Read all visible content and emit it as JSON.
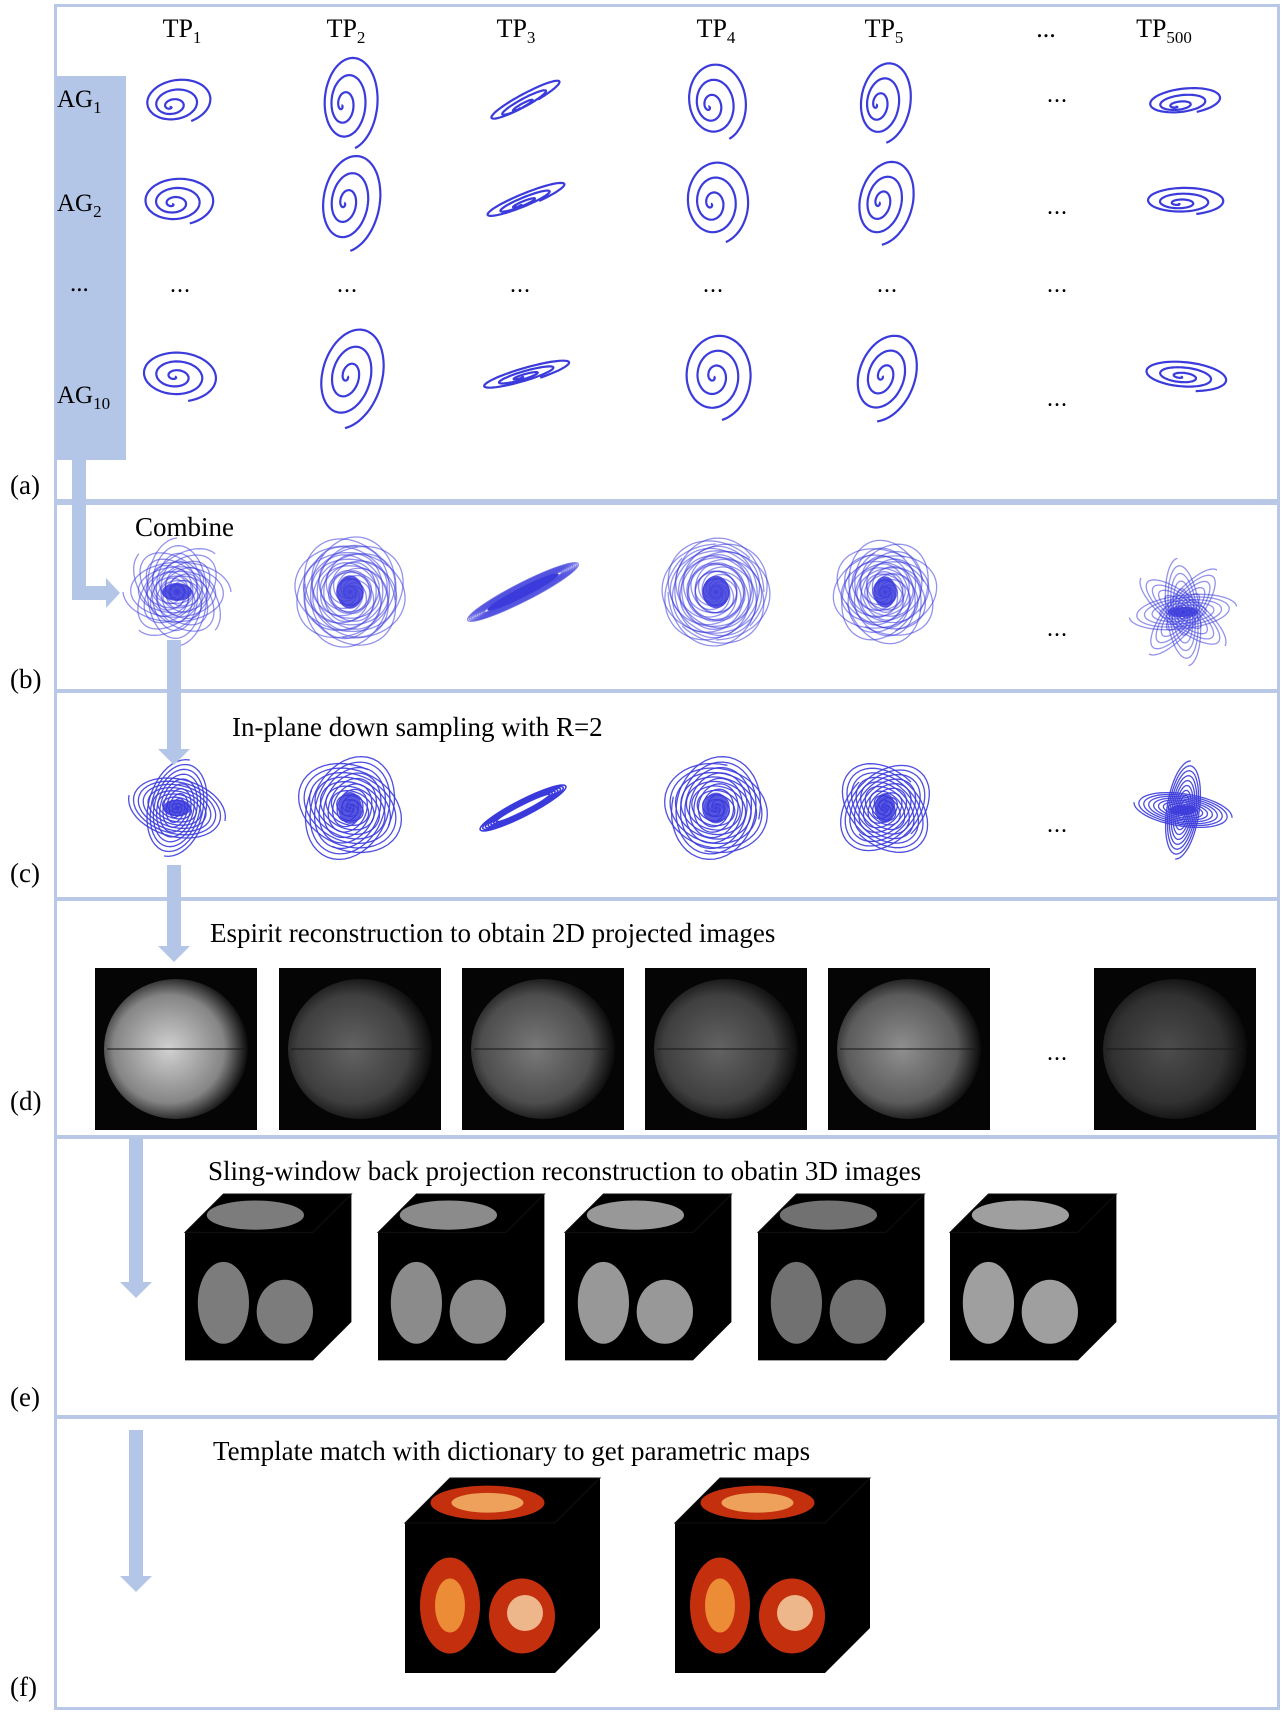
{
  "panel_labels": [
    "(a)",
    "(b)",
    "(c)",
    "(d)",
    "(e)",
    "(f)"
  ],
  "tp_headers": [
    {
      "base": "TP",
      "sub": "1"
    },
    {
      "base": "TP",
      "sub": "2"
    },
    {
      "base": "TP",
      "sub": "3"
    },
    {
      "base": "TP",
      "sub": "4"
    },
    {
      "base": "TP",
      "sub": "5"
    },
    {
      "base": "...",
      "sub": ""
    },
    {
      "base": "TP",
      "sub": "500"
    }
  ],
  "ag_headers": [
    {
      "base": "AG",
      "sub": "1"
    },
    {
      "base": "AG",
      "sub": "2"
    },
    {
      "base": "...",
      "sub": ""
    },
    {
      "base": "AG",
      "sub": "10"
    }
  ],
  "ellipsis": "...",
  "captions": {
    "b": "Combine",
    "c": "In-plane down sampling with R=2",
    "d": "Espirit reconstruction to obtain 2D projected images",
    "e": "Sling-window back projection reconstruction to obatin 3D images",
    "f": "Template match with dictionary to get parametric maps"
  },
  "colors": {
    "trajectory": "#3b3bdc",
    "panel_border": "#b8c8e6",
    "arrow": "#b4c6e7",
    "map_hot": "#d9350f"
  }
}
